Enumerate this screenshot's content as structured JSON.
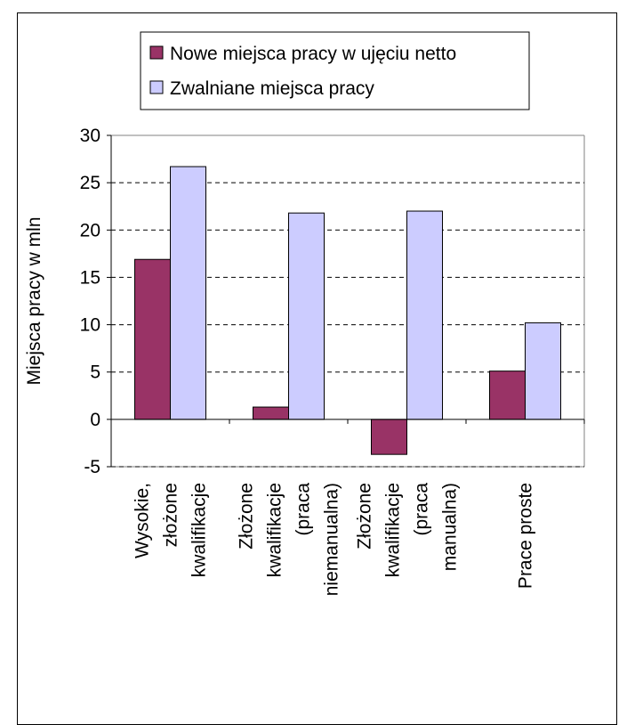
{
  "chart_data": {
    "type": "bar",
    "title": "",
    "xlabel": "",
    "ylabel": "Miejsca pracy w mln",
    "ylim": [
      -5,
      30
    ],
    "yticks": [
      -5,
      0,
      5,
      10,
      15,
      20,
      25,
      30
    ],
    "grid": "horizontal dashed",
    "legend_position": "top",
    "categories": [
      [
        "Wysokie,",
        "złożone",
        "kwalifikacje"
      ],
      [
        "Złożone",
        "kwalifikacje",
        "(praca",
        "niemanualna)"
      ],
      [
        "Złożone",
        "kwalifikacje",
        "(praca",
        "manualna)"
      ],
      [
        "Prace proste"
      ]
    ],
    "series": [
      {
        "name": "Nowe miejsca pracy w ujęciu netto",
        "color": "#993366",
        "values": [
          16.9,
          1.3,
          -3.7,
          5.1
        ]
      },
      {
        "name": "Zwalniane miejsca pracy",
        "color": "#ccccff",
        "values": [
          26.7,
          21.8,
          22.0,
          10.2
        ]
      }
    ]
  }
}
